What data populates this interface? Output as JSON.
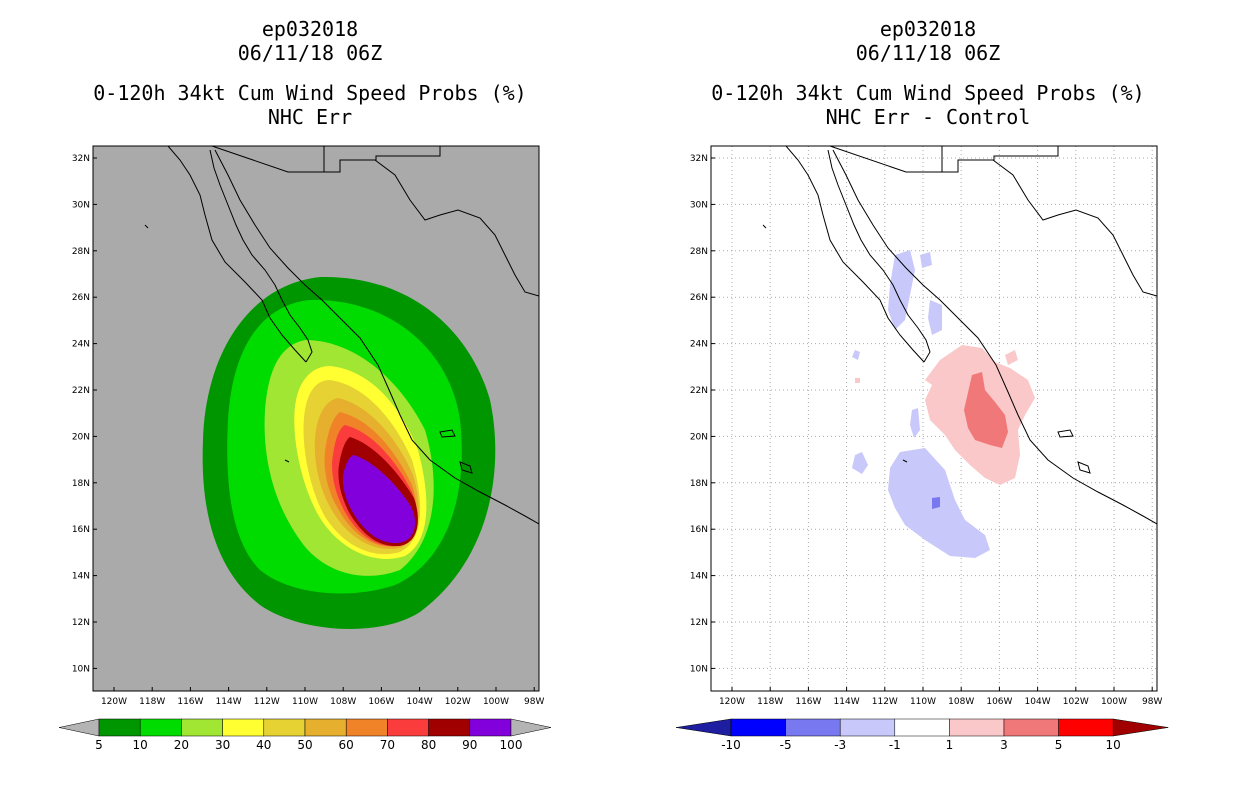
{
  "panels": [
    {
      "id": "left",
      "title_lines": [
        "ep032018",
        "06/11/18 06Z",
        "0-120h 34kt Cum Wind Speed Probs (%)",
        "NHC Err"
      ],
      "colorbar_labels": [
        "5",
        "10",
        "20",
        "30",
        "40",
        "50",
        "60",
        "70",
        "80",
        "90",
        "100"
      ],
      "colorbar_colors": [
        "#b4b4b4",
        "#009600",
        "#00dc00",
        "#a0e632",
        "#ffff32",
        "#e6d232",
        "#e6af2d",
        "#f08228",
        "#fa3c3c",
        "#a00000",
        "#8200dc",
        "#b4b4b4"
      ]
    },
    {
      "id": "right",
      "title_lines": [
        "ep032018",
        "06/11/18 06Z",
        "0-120h 34kt Cum Wind Speed Probs (%)",
        "NHC Err - Control"
      ],
      "colorbar_labels": [
        "-10",
        "-5",
        "-3",
        "-1",
        "1",
        "3",
        "5",
        "10"
      ],
      "colorbar_colors": [
        "#1e1ea0",
        "#0000ff",
        "#7878f0",
        "#c8c8fa",
        "#ffffff",
        "#fac8c8",
        "#f07878",
        "#ff0000",
        "#a00000"
      ]
    }
  ],
  "axes": {
    "lat_labels": [
      "32N",
      "30N",
      "28N",
      "26N",
      "24N",
      "22N",
      "20N",
      "18N",
      "16N",
      "14N",
      "12N",
      "10N"
    ],
    "lon_labels": [
      "120W",
      "118W",
      "116W",
      "114W",
      "112W",
      "110W",
      "108W",
      "106W",
      "104W",
      "102W",
      "100W",
      "98W"
    ]
  }
}
